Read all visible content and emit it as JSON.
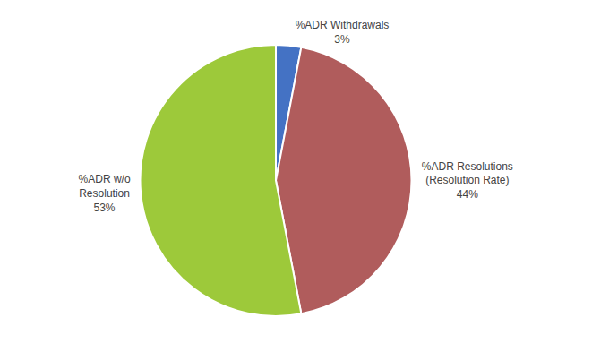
{
  "chart_data": {
    "type": "pie",
    "categories": [
      "%ADR Withdrawals\n3%",
      "%ADR Resolutions\n(Resolution Rate)\n44%",
      "%ADR w/o\nResolution\n53%"
    ],
    "values": [
      3,
      44,
      53
    ],
    "colors": [
      "#4472C4",
      "#B05C5C",
      "#9DC93A"
    ]
  }
}
